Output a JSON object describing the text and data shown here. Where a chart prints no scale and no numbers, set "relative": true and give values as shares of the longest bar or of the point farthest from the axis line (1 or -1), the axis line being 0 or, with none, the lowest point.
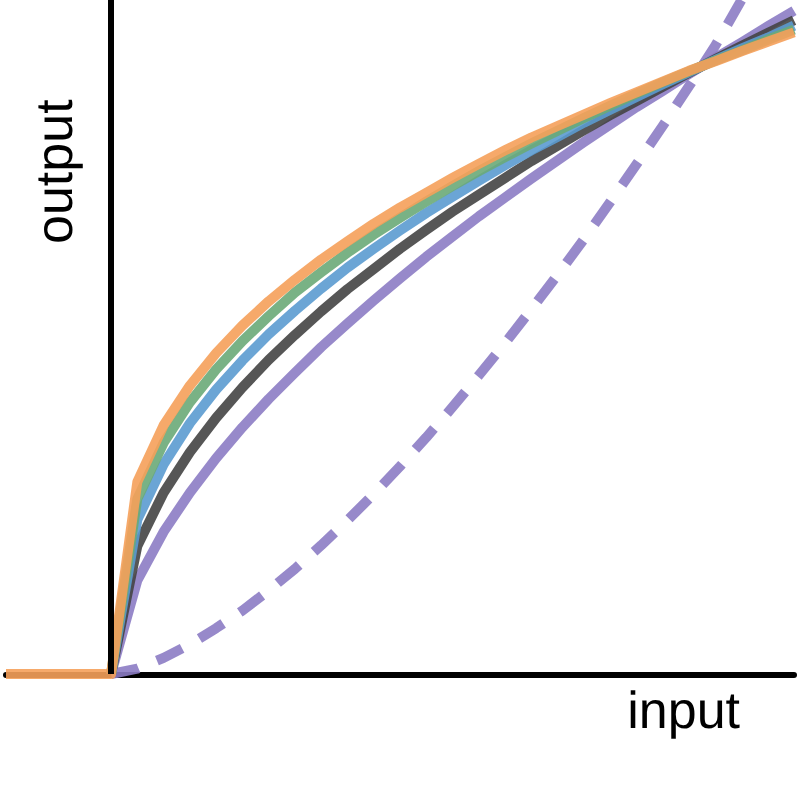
{
  "chart_data": {
    "type": "line",
    "xlabel": "input",
    "ylabel": "output",
    "relative": true,
    "grid": false,
    "marker": "none",
    "categories": [
      null,
      null,
      null,
      null,
      null,
      null,
      null,
      null,
      null,
      null,
      null,
      null,
      null,
      null,
      null,
      null,
      null,
      null,
      null,
      null,
      null,
      null,
      null,
      null,
      null,
      null,
      null,
      null,
      null,
      null,
      null
    ],
    "series": [
      {
        "color": "#8c7cc4",
        "line_style": "dashed",
        "values": [
          null,
          null,
          null,
          null,
          0,
          0.008,
          0.024,
          0.044,
          0.068,
          0.094,
          0.124,
          0.156,
          0.191,
          0.228,
          0.267,
          0.308,
          0.351,
          0.396,
          0.443,
          0.491,
          0.541,
          0.592,
          0.645,
          0.7,
          0.756,
          0.813,
          0.872,
          0.932,
          1.0,
          null,
          null
        ]
      },
      {
        "color": "#8c7cc4",
        "line_style": "solid",
        "values": [
          null,
          null,
          null,
          null,
          0,
          0.139,
          0.211,
          0.269,
          0.32,
          0.366,
          0.408,
          0.447,
          0.485,
          0.52,
          0.554,
          0.587,
          0.619,
          0.649,
          0.679,
          0.707,
          0.735,
          0.762,
          0.789,
          0.815,
          0.841,
          0.865,
          0.89,
          0.914,
          0.937,
          0.961,
          0.984
        ]
      },
      {
        "color": "#444444",
        "line_style": "solid",
        "values": [
          null,
          null,
          null,
          null,
          0,
          0.19,
          0.269,
          0.329,
          0.38,
          0.425,
          0.466,
          0.503,
          0.538,
          0.571,
          0.601,
          0.631,
          0.659,
          0.686,
          0.711,
          0.736,
          0.761,
          0.784,
          0.807,
          0.829,
          0.85,
          0.871,
          0.892,
          0.912,
          0.932,
          0.951,
          0.97
        ]
      },
      {
        "color": "#5b9bd0",
        "line_style": "solid",
        "values": [
          null,
          null,
          null,
          null,
          0,
          0.229,
          0.311,
          0.372,
          0.422,
          0.465,
          0.504,
          0.539,
          0.572,
          0.603,
          0.631,
          0.658,
          0.684,
          0.708,
          0.732,
          0.755,
          0.777,
          0.797,
          0.818,
          0.837,
          0.856,
          0.875,
          0.893,
          0.911,
          0.928,
          0.944,
          0.962
        ]
      },
      {
        "color": "#6aaa78",
        "line_style": "solid",
        "values": [
          null,
          null,
          null,
          null,
          0,
          0.26,
          0.343,
          0.403,
          0.452,
          0.494,
          0.531,
          0.566,
          0.596,
          0.625,
          0.652,
          0.677,
          0.701,
          0.724,
          0.746,
          0.767,
          0.787,
          0.806,
          0.825,
          0.843,
          0.861,
          0.878,
          0.894,
          0.91,
          0.925,
          0.941,
          0.956
        ]
      },
      {
        "color": "#f5a05a",
        "line_style": "solid",
        "values": [
          0,
          0,
          0,
          0,
          0,
          0.285,
          0.369,
          0.428,
          0.476,
          0.517,
          0.553,
          0.585,
          0.615,
          0.642,
          0.668,
          0.692,
          0.714,
          0.736,
          0.757,
          0.777,
          0.796,
          0.813,
          0.83,
          0.847,
          0.863,
          0.879,
          0.895,
          0.909,
          0.924,
          0.938,
          0.952
        ]
      }
    ]
  }
}
